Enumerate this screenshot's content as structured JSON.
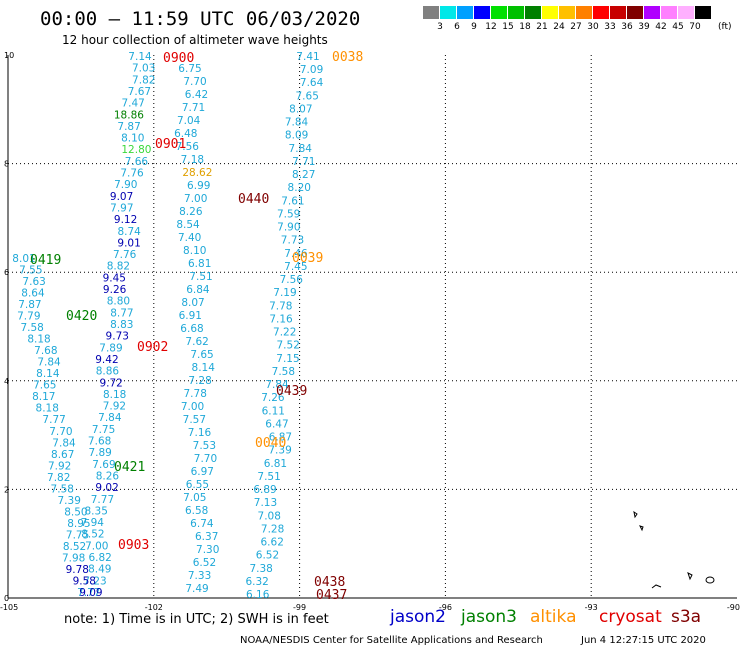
{
  "header": {
    "title": "00:00 – 11:59 UTC 06/03/2020",
    "subtitle": "12 hour collection of altimeter wave heights"
  },
  "colorbar": {
    "colors": [
      "#808080",
      "#00e8e8",
      "#00a0ff",
      "#0000ff",
      "#00e000",
      "#00c000",
      "#008000",
      "#ffff00",
      "#ffc000",
      "#ff8000",
      "#ff0000",
      "#c80000",
      "#800000",
      "#b000ff",
      "#ff80ff",
      "#ffb0ff",
      "#000000"
    ],
    "labels": [
      "3",
      "6",
      "9",
      "12",
      "15",
      "18",
      "21",
      "24",
      "27",
      "30",
      "33",
      "36",
      "39",
      "42",
      "45",
      "70"
    ],
    "unit": "(ft)"
  },
  "axes": {
    "x_labels": [
      "-105",
      "-102",
      "-99",
      "-96",
      "-93",
      "-90"
    ],
    "y_labels": [
      "0",
      "2",
      "4",
      "6",
      "8",
      "10"
    ]
  },
  "tracks": [
    {
      "values": [
        {
          "v": "7.14",
          "c": "#1fa8d8"
        },
        {
          "v": "7.03",
          "c": "#1fa8d8"
        },
        {
          "v": "7.82",
          "c": "#1fa8d8"
        },
        {
          "v": "7.67",
          "c": "#1fa8d8"
        },
        {
          "v": "7.47",
          "c": "#1fa8d8"
        },
        {
          "v": "18.86",
          "c": "#008000"
        },
        {
          "v": "7.87",
          "c": "#1fa8d8"
        },
        {
          "v": "8.10",
          "c": "#1fa8d8"
        },
        {
          "v": "12.80",
          "c": "#3ad83a"
        },
        {
          "v": "7.66",
          "c": "#1fa8d8"
        },
        {
          "v": "7.76",
          "c": "#1fa8d8"
        },
        {
          "v": "7.90",
          "c": "#1fa8d8"
        },
        {
          "v": "9.07",
          "c": "#0000b0"
        },
        {
          "v": "7.97",
          "c": "#1fa8d8"
        },
        {
          "v": "9.12",
          "c": "#0000b0"
        },
        {
          "v": "8.74",
          "c": "#1fa8d8"
        },
        {
          "v": "9.01",
          "c": "#0000b0"
        },
        {
          "v": "7.76",
          "c": "#1fa8d8"
        },
        {
          "v": "8.82",
          "c": "#1fa8d8"
        },
        {
          "v": "9.45",
          "c": "#0000b0"
        },
        {
          "v": "9.26",
          "c": "#0000b0"
        },
        {
          "v": "8.80",
          "c": "#1fa8d8"
        },
        {
          "v": "8.77",
          "c": "#1fa8d8"
        },
        {
          "v": "8.83",
          "c": "#1fa8d8"
        },
        {
          "v": "9.73",
          "c": "#0000b0"
        },
        {
          "v": "7.89",
          "c": "#1fa8d8"
        },
        {
          "v": "9.42",
          "c": "#0000b0"
        },
        {
          "v": "8.86",
          "c": "#1fa8d8"
        },
        {
          "v": "9.72",
          "c": "#0000b0"
        },
        {
          "v": "8.18",
          "c": "#1fa8d8"
        },
        {
          "v": "7.92",
          "c": "#1fa8d8"
        },
        {
          "v": "7.84",
          "c": "#1fa8d8"
        },
        {
          "v": "7.75",
          "c": "#1fa8d8"
        },
        {
          "v": "7.68",
          "c": "#1fa8d8"
        },
        {
          "v": "7.89",
          "c": "#1fa8d8"
        },
        {
          "v": "7.69",
          "c": "#1fa8d8"
        },
        {
          "v": "8.26",
          "c": "#1fa8d8"
        },
        {
          "v": "9.02",
          "c": "#0000b0"
        },
        {
          "v": "7.77",
          "c": "#1fa8d8"
        },
        {
          "v": "8.35",
          "c": "#1fa8d8"
        },
        {
          "v": "7.94",
          "c": "#1fa8d8"
        },
        {
          "v": "8.52",
          "c": "#1fa8d8"
        },
        {
          "v": "7.00",
          "c": "#1fa8d8"
        },
        {
          "v": "6.82",
          "c": "#1fa8d8"
        },
        {
          "v": "8.49",
          "c": "#1fa8d8"
        },
        {
          "v": "7.23",
          "c": "#1fa8d8"
        },
        {
          "v": "7.77",
          "c": "#1fa8d8"
        }
      ]
    },
    {
      "values": [
        {
          "v": "8.01",
          "c": "#1fa8d8"
        },
        {
          "v": "7.55",
          "c": "#1fa8d8"
        },
        {
          "v": "7.63",
          "c": "#1fa8d8"
        },
        {
          "v": "8.64",
          "c": "#1fa8d8"
        },
        {
          "v": "7.87",
          "c": "#1fa8d8"
        },
        {
          "v": "7.79",
          "c": "#1fa8d8"
        },
        {
          "v": "7.58",
          "c": "#1fa8d8"
        },
        {
          "v": "8.18",
          "c": "#1fa8d8"
        },
        {
          "v": "7.68",
          "c": "#1fa8d8"
        },
        {
          "v": "7.84",
          "c": "#1fa8d8"
        },
        {
          "v": "8.14",
          "c": "#1fa8d8"
        },
        {
          "v": "7.65",
          "c": "#1fa8d8"
        },
        {
          "v": "8.17",
          "c": "#1fa8d8"
        },
        {
          "v": "8.18",
          "c": "#1fa8d8"
        },
        {
          "v": "7.77",
          "c": "#1fa8d8"
        },
        {
          "v": "7.70",
          "c": "#1fa8d8"
        },
        {
          "v": "7.84",
          "c": "#1fa8d8"
        },
        {
          "v": "8.67",
          "c": "#1fa8d8"
        },
        {
          "v": "7.92",
          "c": "#1fa8d8"
        },
        {
          "v": "7.82",
          "c": "#1fa8d8"
        },
        {
          "v": "7.58",
          "c": "#1fa8d8"
        },
        {
          "v": "7.39",
          "c": "#1fa8d8"
        },
        {
          "v": "8.50",
          "c": "#1fa8d8"
        },
        {
          "v": "8.95",
          "c": "#1fa8d8"
        },
        {
          "v": "7.75",
          "c": "#1fa8d8"
        },
        {
          "v": "8.52",
          "c": "#1fa8d8"
        },
        {
          "v": "7.98",
          "c": "#1fa8d8"
        },
        {
          "v": "9.78",
          "c": "#0000b0"
        },
        {
          "v": "9.58",
          "c": "#0000b0"
        },
        {
          "v": "9.09",
          "c": "#0000b0"
        }
      ]
    },
    {
      "values": [
        {
          "v": "6.75",
          "c": "#1fa8d8"
        },
        {
          "v": "7.70",
          "c": "#1fa8d8"
        },
        {
          "v": "6.42",
          "c": "#1fa8d8"
        },
        {
          "v": "7.71",
          "c": "#1fa8d8"
        },
        {
          "v": "7.04",
          "c": "#1fa8d8"
        },
        {
          "v": "6.48",
          "c": "#1fa8d8"
        },
        {
          "v": "7.56",
          "c": "#1fa8d8"
        },
        {
          "v": "7.18",
          "c": "#1fa8d8"
        },
        {
          "v": "28.62",
          "c": "#e0a000"
        },
        {
          "v": "6.99",
          "c": "#1fa8d8"
        },
        {
          "v": "7.00",
          "c": "#1fa8d8"
        },
        {
          "v": "8.26",
          "c": "#1fa8d8"
        },
        {
          "v": "8.54",
          "c": "#1fa8d8"
        },
        {
          "v": "7.40",
          "c": "#1fa8d8"
        },
        {
          "v": "8.10",
          "c": "#1fa8d8"
        },
        {
          "v": "6.81",
          "c": "#1fa8d8"
        },
        {
          "v": "7.51",
          "c": "#1fa8d8"
        },
        {
          "v": "6.84",
          "c": "#1fa8d8"
        },
        {
          "v": "8.07",
          "c": "#1fa8d8"
        },
        {
          "v": "6.91",
          "c": "#1fa8d8"
        },
        {
          "v": "6.68",
          "c": "#1fa8d8"
        },
        {
          "v": "7.62",
          "c": "#1fa8d8"
        },
        {
          "v": "7.65",
          "c": "#1fa8d8"
        },
        {
          "v": "8.14",
          "c": "#1fa8d8"
        },
        {
          "v": "7.28",
          "c": "#1fa8d8"
        },
        {
          "v": "7.78",
          "c": "#1fa8d8"
        },
        {
          "v": "7.00",
          "c": "#1fa8d8"
        },
        {
          "v": "7.57",
          "c": "#1fa8d8"
        },
        {
          "v": "7.16",
          "c": "#1fa8d8"
        },
        {
          "v": "7.53",
          "c": "#1fa8d8"
        },
        {
          "v": "7.70",
          "c": "#1fa8d8"
        },
        {
          "v": "6.97",
          "c": "#1fa8d8"
        },
        {
          "v": "6.55",
          "c": "#1fa8d8"
        },
        {
          "v": "7.05",
          "c": "#1fa8d8"
        },
        {
          "v": "6.58",
          "c": "#1fa8d8"
        },
        {
          "v": "6.74",
          "c": "#1fa8d8"
        },
        {
          "v": "6.37",
          "c": "#1fa8d8"
        },
        {
          "v": "7.30",
          "c": "#1fa8d8"
        },
        {
          "v": "6.52",
          "c": "#1fa8d8"
        },
        {
          "v": "7.33",
          "c": "#1fa8d8"
        },
        {
          "v": "7.49",
          "c": "#1fa8d8"
        }
      ]
    },
    {
      "values": [
        {
          "v": "7.41",
          "c": "#1fa8d8"
        },
        {
          "v": "7.09",
          "c": "#1fa8d8"
        },
        {
          "v": "7.64",
          "c": "#1fa8d8"
        },
        {
          "v": "7.65",
          "c": "#1fa8d8"
        },
        {
          "v": "8.07",
          "c": "#1fa8d8"
        },
        {
          "v": "7.84",
          "c": "#1fa8d8"
        },
        {
          "v": "8.09",
          "c": "#1fa8d8"
        },
        {
          "v": "7.84",
          "c": "#1fa8d8"
        },
        {
          "v": "7.71",
          "c": "#1fa8d8"
        },
        {
          "v": "8.27",
          "c": "#1fa8d8"
        },
        {
          "v": "8.20",
          "c": "#1fa8d8"
        },
        {
          "v": "7.61",
          "c": "#1fa8d8"
        },
        {
          "v": "7.59",
          "c": "#1fa8d8"
        },
        {
          "v": "7.90",
          "c": "#1fa8d8"
        },
        {
          "v": "7.73",
          "c": "#1fa8d8"
        },
        {
          "v": "7.46",
          "c": "#1fa8d8"
        },
        {
          "v": "7.45",
          "c": "#1fa8d8"
        },
        {
          "v": "7.56",
          "c": "#1fa8d8"
        },
        {
          "v": "7.19",
          "c": "#1fa8d8"
        },
        {
          "v": "7.78",
          "c": "#1fa8d8"
        },
        {
          "v": "7.16",
          "c": "#1fa8d8"
        },
        {
          "v": "7.22",
          "c": "#1fa8d8"
        },
        {
          "v": "7.52",
          "c": "#1fa8d8"
        },
        {
          "v": "7.15",
          "c": "#1fa8d8"
        },
        {
          "v": "7.58",
          "c": "#1fa8d8"
        },
        {
          "v": "7.84",
          "c": "#1fa8d8"
        },
        {
          "v": "7.26",
          "c": "#1fa8d8"
        },
        {
          "v": "6.11",
          "c": "#1fa8d8"
        },
        {
          "v": "6.47",
          "c": "#1fa8d8"
        },
        {
          "v": "6.87",
          "c": "#1fa8d8"
        },
        {
          "v": "7.39",
          "c": "#1fa8d8"
        },
        {
          "v": "6.81",
          "c": "#1fa8d8"
        },
        {
          "v": "7.51",
          "c": "#1fa8d8"
        },
        {
          "v": "6.89",
          "c": "#1fa8d8"
        },
        {
          "v": "7.13",
          "c": "#1fa8d8"
        },
        {
          "v": "7.08",
          "c": "#1fa8d8"
        },
        {
          "v": "7.28",
          "c": "#1fa8d8"
        },
        {
          "v": "6.62",
          "c": "#1fa8d8"
        },
        {
          "v": "6.52",
          "c": "#1fa8d8"
        },
        {
          "v": "7.38",
          "c": "#1fa8d8"
        },
        {
          "v": "6.32",
          "c": "#1fa8d8"
        },
        {
          "v": "6.16",
          "c": "#1fa8d8"
        }
      ]
    }
  ],
  "time_labels": [
    {
      "t": "0900",
      "c": "#e00000"
    },
    {
      "t": "0901",
      "c": "#e00000"
    },
    {
      "t": "0902",
      "c": "#e00000"
    },
    {
      "t": "0903",
      "c": "#e00000"
    },
    {
      "t": "0419",
      "c": "#008000"
    },
    {
      "t": "0420",
      "c": "#008000"
    },
    {
      "t": "0421",
      "c": "#008000"
    },
    {
      "t": "0440",
      "c": "#800000"
    },
    {
      "t": "0439",
      "c": "#800000"
    },
    {
      "t": "0438",
      "c": "#800000"
    },
    {
      "t": "0437",
      "c": "#800000"
    },
    {
      "t": "0038",
      "c": "#ff9000"
    },
    {
      "t": "0039",
      "c": "#ff9000"
    },
    {
      "t": "0040",
      "c": "#ff9000"
    }
  ],
  "note": "note: 1) Time is in UTC; 2) SWH is in feet",
  "legend": [
    {
      "name": "jason2",
      "color": "#0000c8"
    },
    {
      "name": "jason3",
      "color": "#008000"
    },
    {
      "name": "altika",
      "color": "#ff9000"
    },
    {
      "name": "cryosat",
      "color": "#e00000"
    },
    {
      "name": "s3a",
      "color": "#800000"
    }
  ],
  "credit": "NOAA/NESDIS Center for Satellite Applications and Research",
  "timestamp": "Jun  4 12:27:15 UTC 2020"
}
